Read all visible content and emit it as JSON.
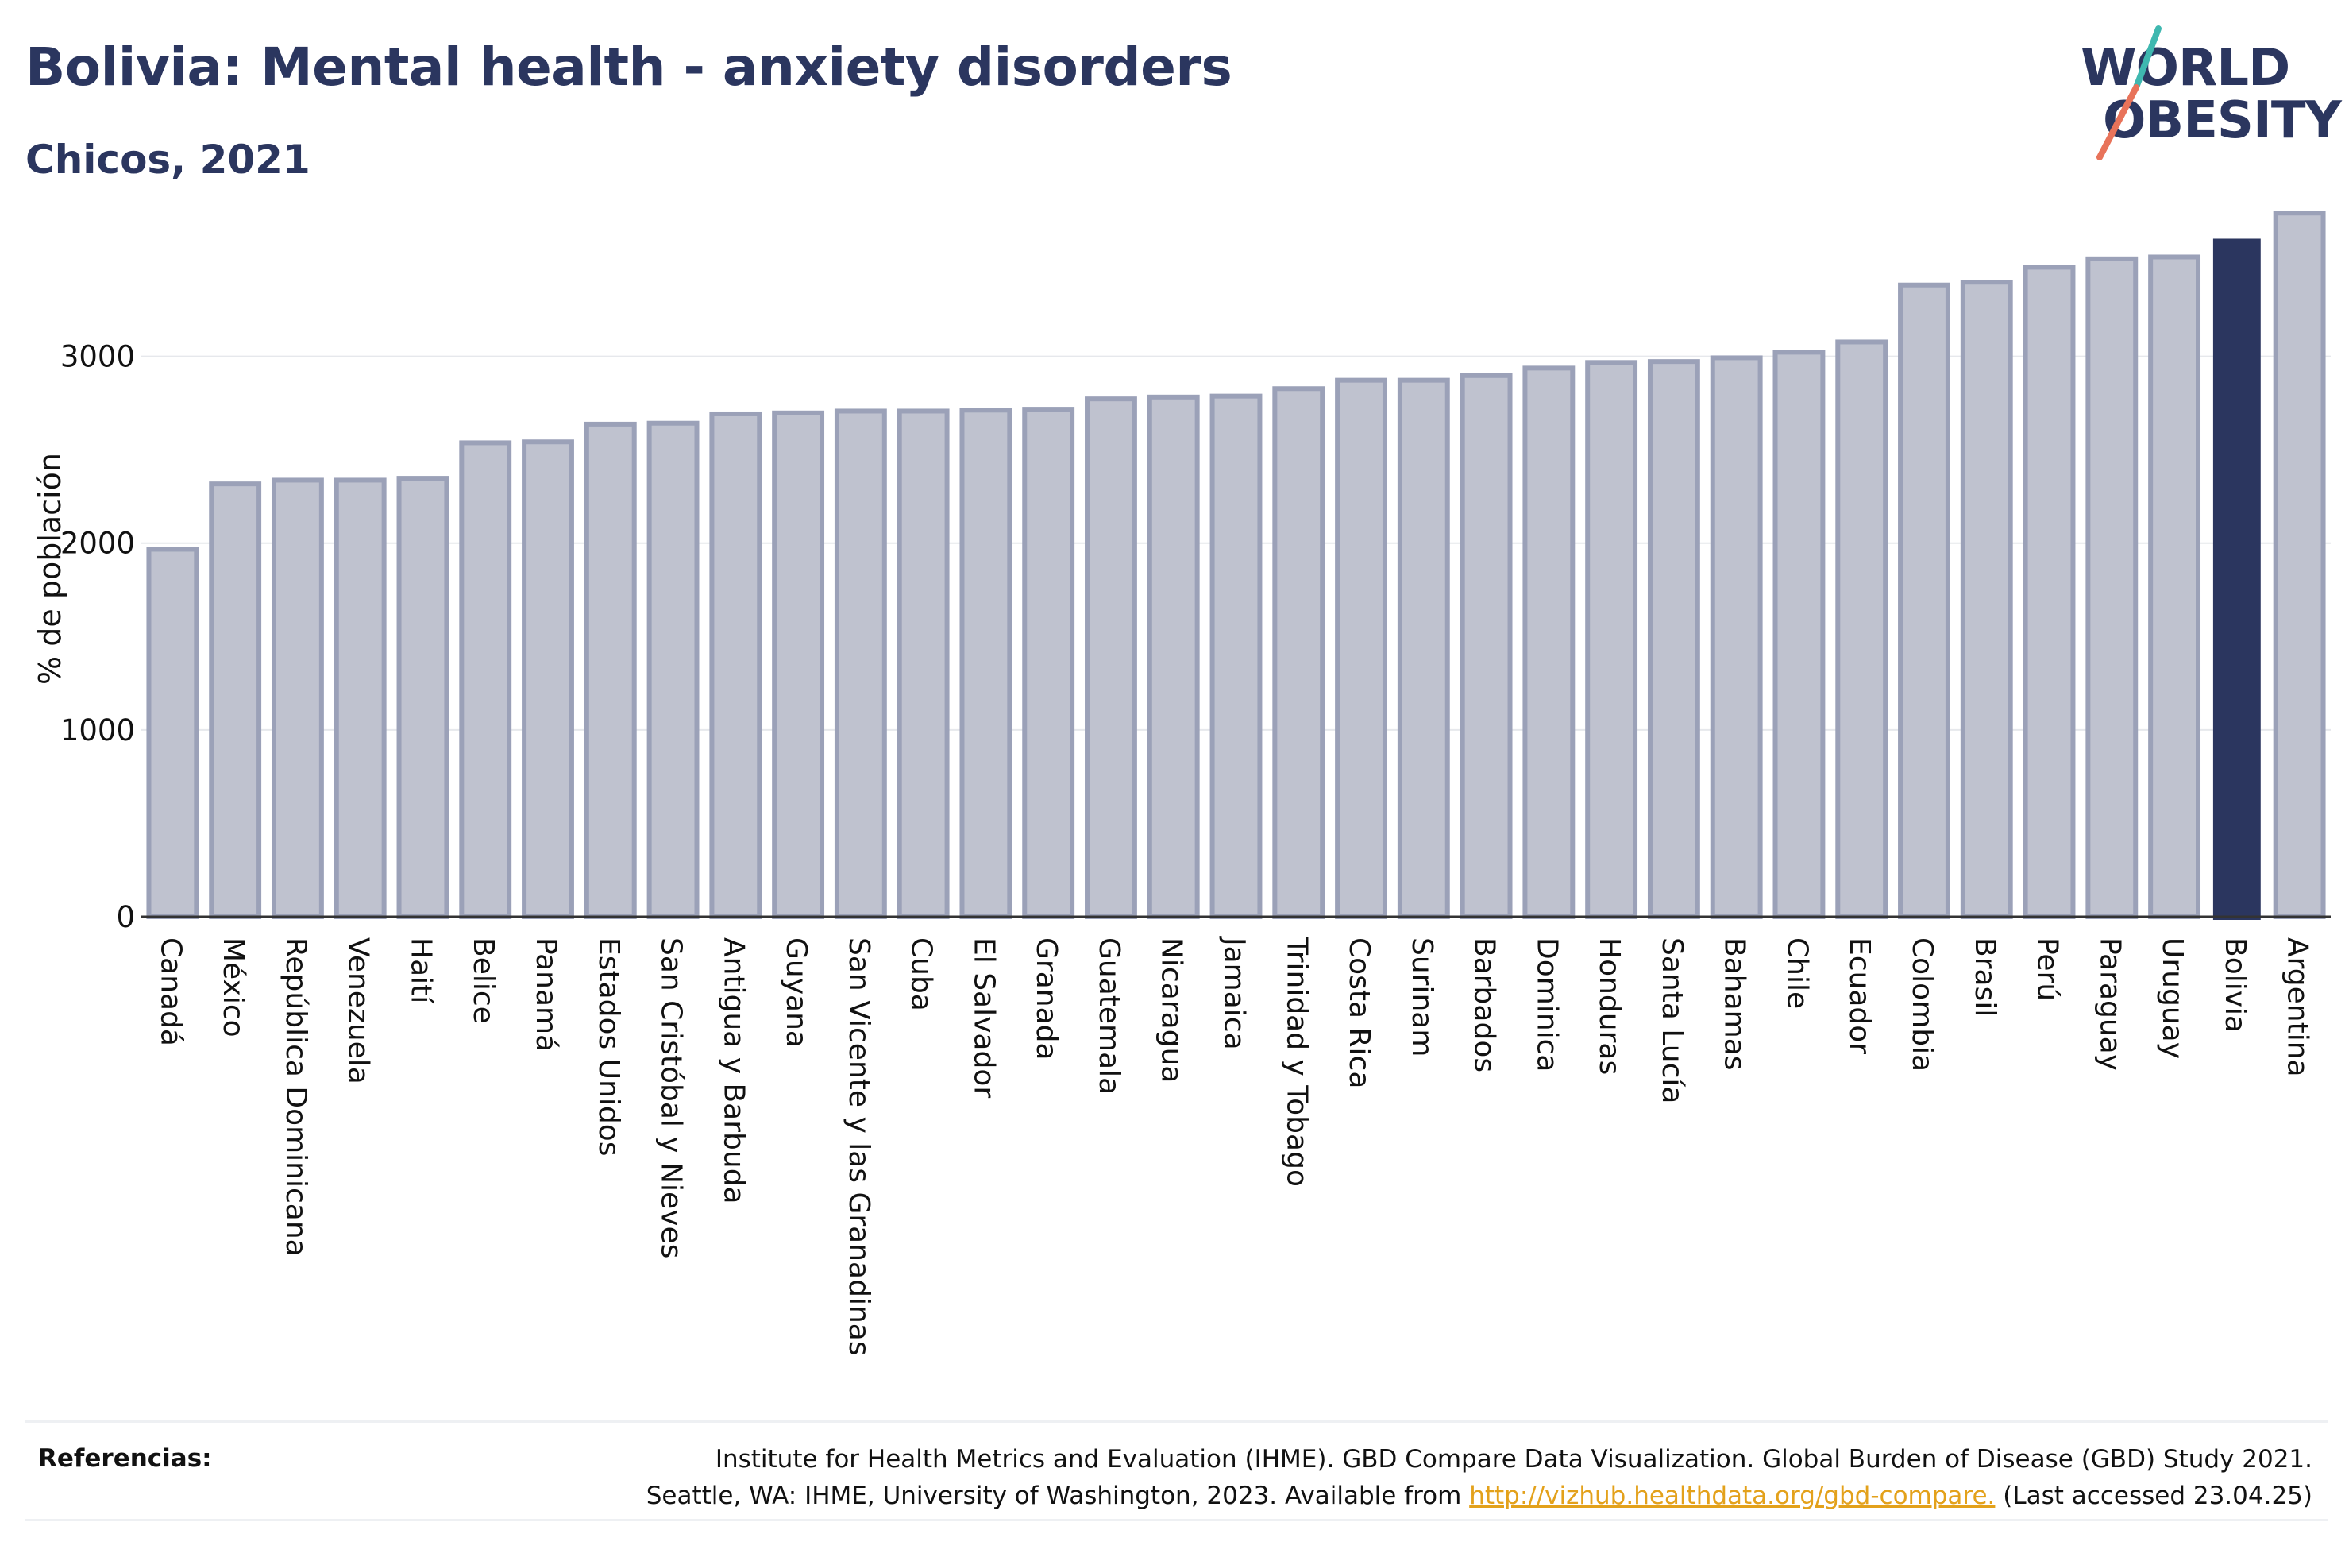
{
  "title": "Bolivia: Mental health - anxiety disorders",
  "subtitle": "Chicos, 2021",
  "logo": {
    "line1": "WORLD",
    "line2": "OBESITY"
  },
  "references": {
    "label": "Referencias:",
    "line1": "Institute for Health Metrics and Evaluation (IHME). GBD Compare Data Visualization. Global Burden of Disease (GBD) Study 2021.",
    "line2_prefix": "Seattle, WA: IHME, University of Washington, 2023. Available from ",
    "link": "http://vizhub.healthdata.org/gbd-compare.",
    "line2_suffix": " (Last accessed 23.04.25)"
  },
  "colors": {
    "bar_fill": "#bfc2cf",
    "bar_border": "#9ba1b8",
    "highlight": "#2b365f",
    "grid": "#e6e8ec",
    "link": "#e3a11b"
  },
  "chart_data": {
    "type": "bar",
    "ylabel": "% de población",
    "xlabel": "",
    "ylim": [
      0,
      3900
    ],
    "yticks": [
      0,
      1000,
      2000,
      3000
    ],
    "grid": true,
    "highlight": "Bolivia",
    "categories": [
      "Canadá",
      "México",
      "República Dominicana",
      "Venezuela",
      "Haití",
      "Belice",
      "Panamá",
      "Estados Unidos",
      "San Cristóbal y Nieves",
      "Antigua y Barbuda",
      "Guyana",
      "San Vicente y las Granadinas",
      "Cuba",
      "El Salvador",
      "Granada",
      "Guatemala",
      "Nicaragua",
      "Jamaica",
      "Trinidad y Tobago",
      "Costa Rica",
      "Surinam",
      "Barbados",
      "Dominica",
      "Honduras",
      "Santa Lucía",
      "Bahamas",
      "Chile",
      "Ecuador",
      "Colombia",
      "Brasil",
      "Perú",
      "Paraguay",
      "Uruguay",
      "Bolivia",
      "Argentina"
    ],
    "values": [
      1980,
      2330,
      2350,
      2350,
      2360,
      2550,
      2555,
      2650,
      2655,
      2705,
      2710,
      2720,
      2720,
      2725,
      2730,
      2785,
      2795,
      2800,
      2840,
      2885,
      2885,
      2910,
      2950,
      2980,
      2985,
      3005,
      3035,
      3090,
      3395,
      3410,
      3490,
      3535,
      3545,
      3630,
      3780
    ]
  }
}
